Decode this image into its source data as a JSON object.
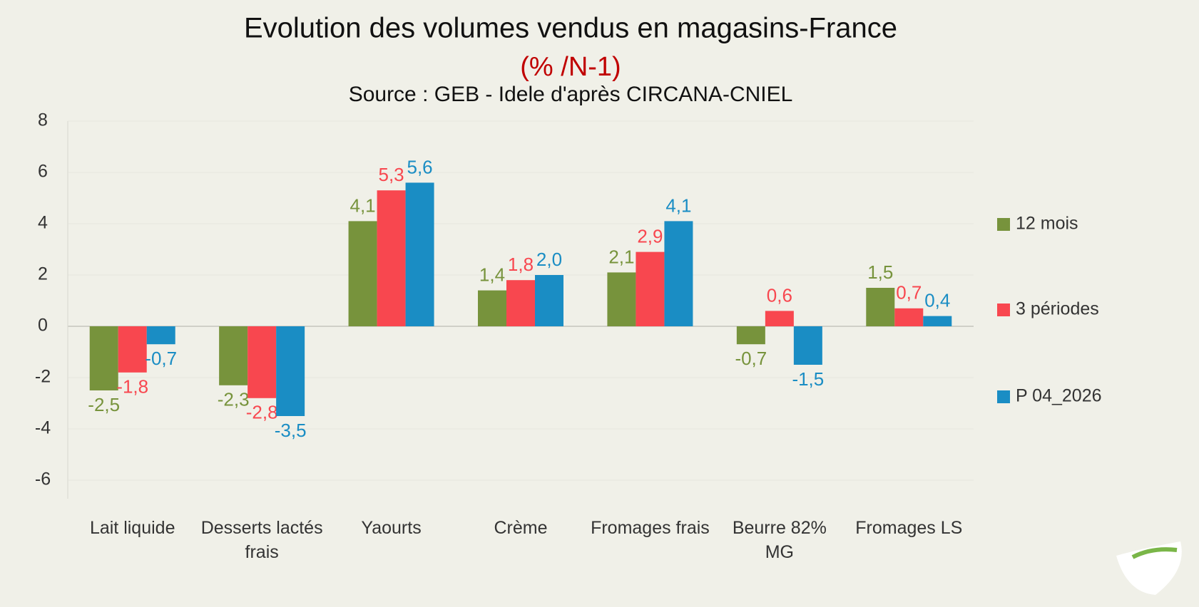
{
  "chart_data": {
    "type": "bar",
    "title": "Evolution des volumes vendus en magasins-France",
    "subtitle": "(% /N-1)",
    "source": "Source : GEB - Idele d'après CIRCANA-CNIEL",
    "categories": [
      "Lait liquide",
      "Desserts lactés frais",
      "Yaourts",
      "Crème",
      "Fromages frais",
      "Beurre 82% MG",
      "Fromages LS"
    ],
    "series": [
      {
        "name": "12 mois",
        "color": "#77933c",
        "values": [
          -2.5,
          -2.3,
          4.1,
          1.4,
          2.1,
          -0.7,
          1.5
        ],
        "value_labels": [
          "-2,5",
          "-2,3",
          "4,1",
          "1,4",
          "2,1",
          "-0,7",
          "1,5"
        ]
      },
      {
        "name": "3 périodes",
        "color": "#f8474f",
        "values": [
          -1.8,
          -2.8,
          5.3,
          1.8,
          2.9,
          0.6,
          0.7
        ],
        "value_labels": [
          "-1,8",
          "-2,8",
          "5,3",
          "1,8",
          "2,9",
          "0,6",
          "0,7"
        ]
      },
      {
        "name": "P 04_2026",
        "color": "#1a8dc4",
        "values": [
          -0.7,
          -3.5,
          5.6,
          2.0,
          4.1,
          -1.5,
          0.4
        ],
        "value_labels": [
          "-0,7",
          "-3,5",
          "5,6",
          "2,0",
          "4,1",
          "-1,5",
          "0,4"
        ]
      }
    ],
    "ylim": [
      -6,
      8
    ],
    "yticks": [
      -6,
      -4,
      -2,
      0,
      2,
      4,
      6,
      8
    ],
    "grid": true,
    "legend": "right"
  }
}
